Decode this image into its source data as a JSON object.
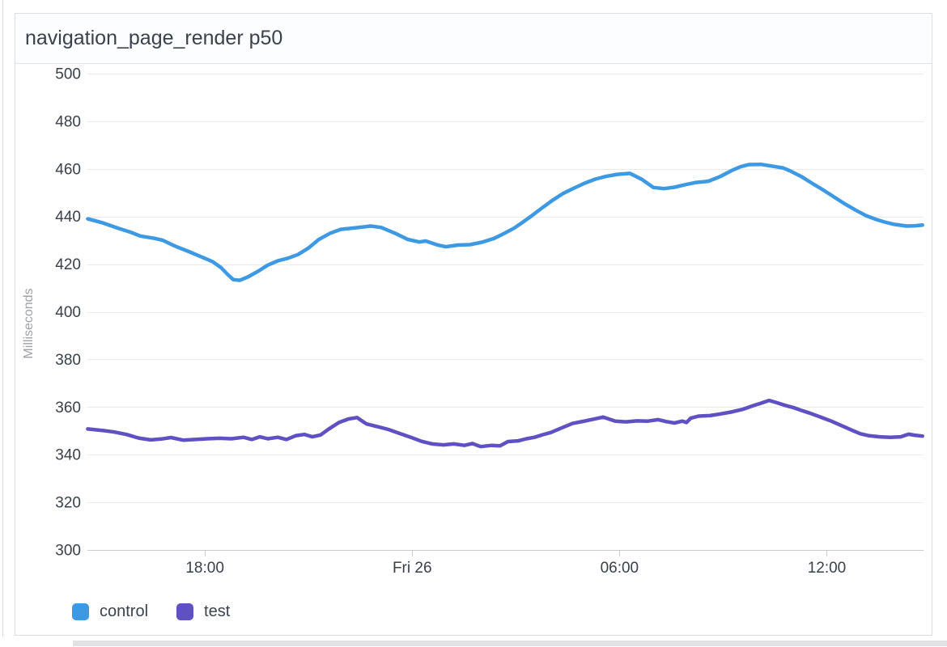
{
  "panel": {
    "title": "navigation_page_render p50"
  },
  "colors": {
    "panel_border": "#dedee2",
    "header_bg": "#fcfdfe",
    "grid_line": "#ebebed",
    "axis_line": "#c8cbd0",
    "tick_text": "#394049",
    "axis_title_text": "#9ea2a8",
    "title_text": "#39424c",
    "control_series": "#3d99e3",
    "test_series": "#5f50c3"
  },
  "chart_data": {
    "type": "line",
    "title": "navigation_page_render p50",
    "xlabel": "",
    "ylabel": "Milliseconds",
    "ylim": [
      300,
      500
    ],
    "y_ticks": [
      300,
      320,
      340,
      360,
      380,
      400,
      420,
      440,
      460,
      480,
      500
    ],
    "x_unit": "hours_since_thursday_00:00",
    "x_domain": [
      14.6,
      38.8
    ],
    "x_ticks": [
      {
        "value": 18,
        "label": "18:00"
      },
      {
        "value": 24,
        "label": "Fri 26"
      },
      {
        "value": 30,
        "label": "06:00"
      },
      {
        "value": 36,
        "label": "12:00"
      }
    ],
    "grid": "horizontal-only",
    "legend_position": "bottom-left",
    "series": [
      {
        "name": "control",
        "color": "#3d99e3",
        "points": [
          [
            14.61,
            439.0
          ],
          [
            15.03,
            437.4
          ],
          [
            15.5,
            435.0
          ],
          [
            15.85,
            433.4
          ],
          [
            16.13,
            431.8
          ],
          [
            16.55,
            430.8
          ],
          [
            16.78,
            430.0
          ],
          [
            17.13,
            427.6
          ],
          [
            17.53,
            425.3
          ],
          [
            17.91,
            423.0
          ],
          [
            18.23,
            421.0
          ],
          [
            18.47,
            418.5
          ],
          [
            18.65,
            415.8
          ],
          [
            18.82,
            413.5
          ],
          [
            19.01,
            413.2
          ],
          [
            19.24,
            414.6
          ],
          [
            19.54,
            417.0
          ],
          [
            19.82,
            419.6
          ],
          [
            20.11,
            421.4
          ],
          [
            20.41,
            422.5
          ],
          [
            20.69,
            424.0
          ],
          [
            21.0,
            426.8
          ],
          [
            21.3,
            430.4
          ],
          [
            21.63,
            433.0
          ],
          [
            21.93,
            434.6
          ],
          [
            22.4,
            435.3
          ],
          [
            22.8,
            436.0
          ],
          [
            23.1,
            435.4
          ],
          [
            23.5,
            433.0
          ],
          [
            23.87,
            430.4
          ],
          [
            24.2,
            429.3
          ],
          [
            24.39,
            429.7
          ],
          [
            24.74,
            428.0
          ],
          [
            24.97,
            427.3
          ],
          [
            25.32,
            428.0
          ],
          [
            25.67,
            428.2
          ],
          [
            26.02,
            429.2
          ],
          [
            26.37,
            430.8
          ],
          [
            26.65,
            432.8
          ],
          [
            26.96,
            435.2
          ],
          [
            27.19,
            437.5
          ],
          [
            27.43,
            440.0
          ],
          [
            27.73,
            443.3
          ],
          [
            28.06,
            446.8
          ],
          [
            28.36,
            449.6
          ],
          [
            28.67,
            451.8
          ],
          [
            28.99,
            454.0
          ],
          [
            29.3,
            455.7
          ],
          [
            29.6,
            456.8
          ],
          [
            29.93,
            457.7
          ],
          [
            30.3,
            458.1
          ],
          [
            30.65,
            455.6
          ],
          [
            30.98,
            452.2
          ],
          [
            31.29,
            451.7
          ],
          [
            31.59,
            452.3
          ],
          [
            31.92,
            453.4
          ],
          [
            32.22,
            454.3
          ],
          [
            32.57,
            454.8
          ],
          [
            32.92,
            456.8
          ],
          [
            33.23,
            459.2
          ],
          [
            33.51,
            460.9
          ],
          [
            33.74,
            461.8
          ],
          [
            34.09,
            461.9
          ],
          [
            34.4,
            461.2
          ],
          [
            34.73,
            460.4
          ],
          [
            34.96,
            459.0
          ],
          [
            35.26,
            456.8
          ],
          [
            35.57,
            454.0
          ],
          [
            35.89,
            451.2
          ],
          [
            36.2,
            448.3
          ],
          [
            36.5,
            445.5
          ],
          [
            36.83,
            442.7
          ],
          [
            37.13,
            440.4
          ],
          [
            37.44,
            438.7
          ],
          [
            37.67,
            437.7
          ],
          [
            37.95,
            436.7
          ],
          [
            38.3,
            436.0
          ],
          [
            38.54,
            436.1
          ],
          [
            38.77,
            436.4
          ]
        ]
      },
      {
        "name": "test",
        "color": "#5f50c3",
        "points": [
          [
            14.61,
            350.8
          ],
          [
            15.03,
            350.2
          ],
          [
            15.38,
            349.5
          ],
          [
            15.73,
            348.5
          ],
          [
            16.08,
            347.0
          ],
          [
            16.43,
            346.2
          ],
          [
            16.74,
            346.6
          ],
          [
            17.02,
            347.2
          ],
          [
            17.37,
            346.1
          ],
          [
            17.72,
            346.4
          ],
          [
            18.07,
            346.7
          ],
          [
            18.42,
            346.9
          ],
          [
            18.77,
            346.7
          ],
          [
            19.12,
            347.3
          ],
          [
            19.36,
            346.4
          ],
          [
            19.59,
            347.5
          ],
          [
            19.82,
            346.7
          ],
          [
            20.11,
            347.3
          ],
          [
            20.36,
            346.4
          ],
          [
            20.64,
            348.0
          ],
          [
            20.88,
            348.5
          ],
          [
            21.11,
            347.5
          ],
          [
            21.35,
            348.3
          ],
          [
            21.58,
            350.7
          ],
          [
            21.88,
            353.5
          ],
          [
            22.16,
            355.0
          ],
          [
            22.4,
            355.6
          ],
          [
            22.68,
            352.9
          ],
          [
            23.01,
            351.7
          ],
          [
            23.31,
            350.6
          ],
          [
            23.64,
            348.9
          ],
          [
            23.96,
            347.3
          ],
          [
            24.27,
            345.6
          ],
          [
            24.58,
            344.5
          ],
          [
            24.9,
            344.1
          ],
          [
            25.2,
            344.5
          ],
          [
            25.51,
            343.9
          ],
          [
            25.74,
            344.7
          ],
          [
            25.98,
            343.4
          ],
          [
            26.3,
            343.9
          ],
          [
            26.54,
            343.7
          ],
          [
            26.77,
            345.5
          ],
          [
            27.07,
            345.8
          ],
          [
            27.31,
            346.7
          ],
          [
            27.54,
            347.3
          ],
          [
            27.78,
            348.4
          ],
          [
            28.01,
            349.3
          ],
          [
            28.32,
            351.2
          ],
          [
            28.64,
            353.1
          ],
          [
            28.95,
            354.0
          ],
          [
            29.25,
            354.9
          ],
          [
            29.53,
            355.8
          ],
          [
            29.88,
            354.1
          ],
          [
            30.19,
            353.8
          ],
          [
            30.51,
            354.2
          ],
          [
            30.82,
            354.1
          ],
          [
            31.12,
            354.7
          ],
          [
            31.36,
            353.9
          ],
          [
            31.59,
            353.3
          ],
          [
            31.82,
            354.1
          ],
          [
            31.94,
            353.5
          ],
          [
            32.06,
            355.3
          ],
          [
            32.29,
            356.2
          ],
          [
            32.62,
            356.4
          ],
          [
            32.92,
            357.1
          ],
          [
            33.23,
            357.9
          ],
          [
            33.56,
            359.0
          ],
          [
            33.86,
            360.5
          ],
          [
            34.09,
            361.6
          ],
          [
            34.33,
            362.8
          ],
          [
            34.56,
            361.8
          ],
          [
            34.79,
            360.7
          ],
          [
            35.03,
            359.8
          ],
          [
            35.26,
            358.6
          ],
          [
            35.5,
            357.5
          ],
          [
            35.8,
            355.9
          ],
          [
            36.13,
            354.1
          ],
          [
            36.43,
            352.2
          ],
          [
            36.74,
            350.2
          ],
          [
            36.97,
            348.8
          ],
          [
            37.2,
            348.0
          ],
          [
            37.53,
            347.5
          ],
          [
            37.84,
            347.3
          ],
          [
            38.14,
            347.5
          ],
          [
            38.37,
            348.6
          ],
          [
            38.54,
            348.2
          ],
          [
            38.77,
            347.8
          ]
        ]
      }
    ]
  }
}
